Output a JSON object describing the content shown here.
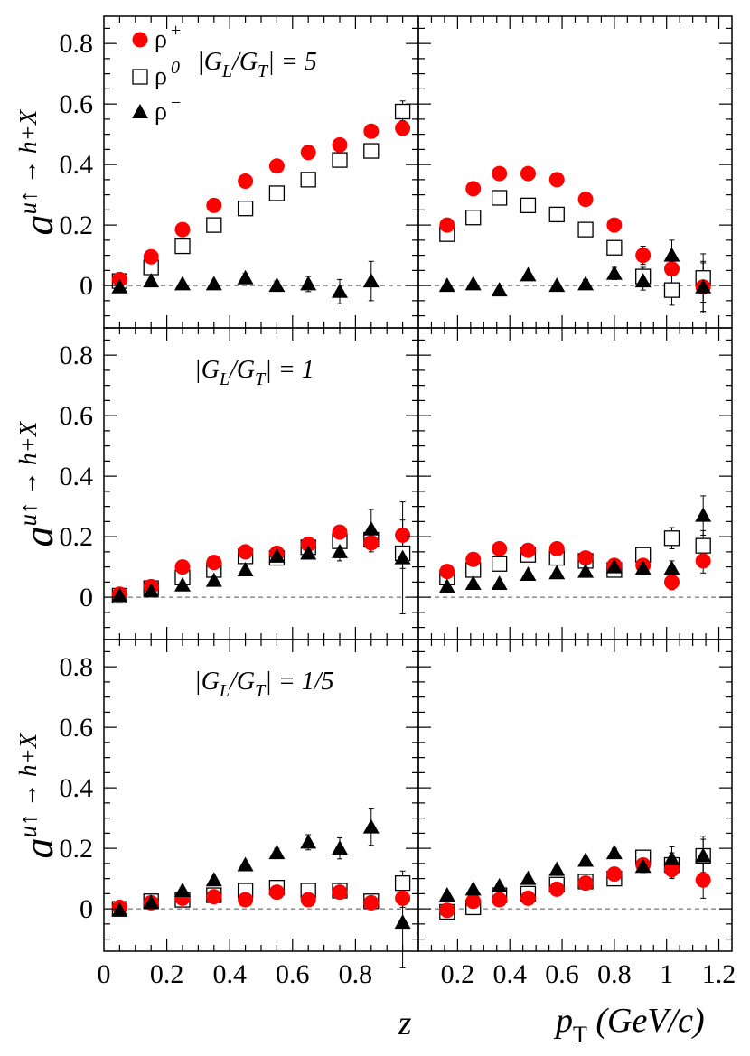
{
  "chart_data": {
    "type": "scatter",
    "ylabel": "a^{u↑ → h+X}",
    "ylabel_main": "a",
    "ylabel_sup": "u↑ → h+X",
    "x_axes": [
      {
        "column": "left",
        "label": "z",
        "range": [
          0,
          1.0
        ],
        "ticks": [
          0,
          0.2,
          0.4,
          0.6,
          0.8
        ],
        "tick_labels": [
          "0",
          "0.2",
          "0.4",
          "0.6",
          "0.8"
        ]
      },
      {
        "column": "right",
        "label_main": "p",
        "label_sub": "T",
        "label_unit": "(GeV/c)",
        "range": [
          0.05,
          1.25
        ],
        "ticks": [
          0.2,
          0.4,
          0.6,
          0.8,
          1.0,
          1.2
        ],
        "tick_labels": [
          "0.2",
          "0.4",
          "0.6",
          "0.8",
          "1",
          "1.2"
        ]
      }
    ],
    "y_range": [
      -0.14,
      0.89
    ],
    "y_ticks": [
      0,
      0.2,
      0.4,
      0.6,
      0.8
    ],
    "y_tick_labels": [
      "0",
      "0.2",
      "0.4",
      "0.6",
      "0.8"
    ],
    "zero_line": "dashed",
    "legend": [
      {
        "name": "ρ+",
        "base": "ρ",
        "sup": "+",
        "marker": "circle",
        "color": "#ff0000"
      },
      {
        "name": "ρ0",
        "base": "ρ",
        "sup": "0",
        "marker": "open-square",
        "color": "#000000"
      },
      {
        "name": "ρ-",
        "base": "ρ",
        "sup": "−",
        "marker": "triangle",
        "color": "#000000"
      }
    ],
    "rows": [
      {
        "annotation": "|G_L/G_T| = 5",
        "ann_parts": [
          "|G",
          "L",
          "/G",
          "T",
          "| = 5"
        ],
        "panels": [
          {
            "x": [
              0.05,
              0.15,
              0.25,
              0.35,
              0.45,
              0.55,
              0.65,
              0.75,
              0.85,
              0.95
            ],
            "series": [
              {
                "name": "ρ+",
                "values": [
                  0.02,
                  0.095,
                  0.185,
                  0.265,
                  0.345,
                  0.395,
                  0.44,
                  0.465,
                  0.51,
                  0.52
                ],
                "errors": [
                  0.01,
                  0.01,
                  0.01,
                  0.01,
                  0.01,
                  0.01,
                  0.01,
                  0.01,
                  0.012,
                  0.025
                ]
              },
              {
                "name": "ρ0",
                "values": [
                  0.015,
                  0.06,
                  0.13,
                  0.2,
                  0.255,
                  0.305,
                  0.35,
                  0.415,
                  0.445,
                  0.575
                ],
                "errors": [
                  0.01,
                  0.01,
                  0.01,
                  0.01,
                  0.01,
                  0.01,
                  0.01,
                  0.01,
                  0.015,
                  0.035
                ]
              },
              {
                "name": "ρ-",
                "values": [
                  -0.005,
                  0.015,
                  0.005,
                  0.005,
                  0.025,
                  0.0,
                  0.005,
                  -0.02,
                  0.015,
                  null
                ],
                "errors": [
                  0.01,
                  0.01,
                  0.01,
                  0.01,
                  0.015,
                  0.015,
                  0.025,
                  0.04,
                  0.065,
                  0.0
                ]
              }
            ]
          },
          {
            "x": [
              0.16,
              0.26,
              0.36,
              0.47,
              0.58,
              0.69,
              0.8,
              0.91,
              1.02,
              1.14
            ],
            "series": [
              {
                "name": "ρ+",
                "values": [
                  0.2,
                  0.32,
                  0.37,
                  0.37,
                  0.35,
                  0.285,
                  0.2,
                  0.1,
                  0.055,
                  -0.005
                ],
                "errors": [
                  0.01,
                  0.01,
                  0.01,
                  0.01,
                  0.01,
                  0.01,
                  0.012,
                  0.03,
                  0.05,
                  0.08
                ]
              },
              {
                "name": "ρ0",
                "values": [
                  0.17,
                  0.225,
                  0.29,
                  0.265,
                  0.235,
                  0.185,
                  0.125,
                  0.03,
                  -0.015,
                  0.025
                ],
                "errors": [
                  0.01,
                  0.01,
                  0.01,
                  0.01,
                  0.01,
                  0.01,
                  0.015,
                  0.03,
                  0.05,
                  0.08
                ]
              },
              {
                "name": "ρ-",
                "values": [
                  0.0,
                  0.005,
                  -0.015,
                  0.035,
                  0.0,
                  0.005,
                  0.04,
                  0.015,
                  0.1,
                  -0.005
                ],
                "errors": [
                  0.01,
                  0.01,
                  0.01,
                  0.012,
                  0.012,
                  0.015,
                  0.02,
                  0.03,
                  0.05,
                  0.085
                ]
              }
            ]
          }
        ]
      },
      {
        "annotation": "|G_L/G_T| = 1",
        "ann_parts": [
          "|G",
          "L",
          "/G",
          "T",
          "| = 1"
        ],
        "panels": [
          {
            "x": [
              0.05,
              0.15,
              0.25,
              0.35,
              0.45,
              0.55,
              0.65,
              0.75,
              0.85,
              0.95
            ],
            "series": [
              {
                "name": "ρ+",
                "values": [
                  0.01,
                  0.035,
                  0.1,
                  0.115,
                  0.15,
                  0.145,
                  0.175,
                  0.215,
                  0.18,
                  0.205
                ],
                "errors": [
                  0.01,
                  0.01,
                  0.01,
                  0.01,
                  0.01,
                  0.01,
                  0.012,
                  0.015,
                  0.03,
                  0.05
                ]
              },
              {
                "name": "ρ0",
                "values": [
                  0.005,
                  0.03,
                  0.065,
                  0.09,
                  0.135,
                  0.13,
                  0.165,
                  0.185,
                  0.19,
                  0.145
                ],
                "errors": [
                  0.01,
                  0.01,
                  0.01,
                  0.01,
                  0.01,
                  0.01,
                  0.012,
                  0.015,
                  0.03,
                  0.05
                ]
              },
              {
                "name": "ρ-",
                "values": [
                  0.005,
                  0.02,
                  0.04,
                  0.055,
                  0.09,
                  0.135,
                  0.145,
                  0.15,
                  0.225,
                  0.13
                ],
                "errors": [
                  0.01,
                  0.01,
                  0.01,
                  0.01,
                  0.01,
                  0.012,
                  0.015,
                  0.03,
                  0.065,
                  0.185
                ]
              }
            ]
          },
          {
            "x": [
              0.16,
              0.26,
              0.36,
              0.47,
              0.58,
              0.69,
              0.8,
              0.91,
              1.02,
              1.14
            ],
            "series": [
              {
                "name": "ρ+",
                "values": [
                  0.085,
                  0.125,
                  0.16,
                  0.155,
                  0.16,
                  0.13,
                  0.105,
                  0.105,
                  0.05,
                  0.12
                ],
                "errors": [
                  0.01,
                  0.01,
                  0.01,
                  0.01,
                  0.01,
                  0.01,
                  0.012,
                  0.015,
                  0.025,
                  0.04
                ]
              },
              {
                "name": "ρ0",
                "values": [
                  0.065,
                  0.09,
                  0.11,
                  0.14,
                  0.13,
                  0.12,
                  0.09,
                  0.14,
                  0.195,
                  0.17
                ],
                "errors": [
                  0.01,
                  0.01,
                  0.01,
                  0.01,
                  0.01,
                  0.01,
                  0.012,
                  0.02,
                  0.035,
                  0.05
                ]
              },
              {
                "name": "ρ-",
                "values": [
                  0.035,
                  0.045,
                  0.045,
                  0.075,
                  0.08,
                  0.085,
                  0.1,
                  0.095,
                  0.095,
                  0.27
                ],
                "errors": [
                  0.01,
                  0.01,
                  0.01,
                  0.01,
                  0.01,
                  0.01,
                  0.012,
                  0.02,
                  0.025,
                  0.065
                ]
              }
            ]
          }
        ]
      },
      {
        "annotation": "|G_L/G_T| = 1/5",
        "ann_parts": [
          "|G",
          "L",
          "/G",
          "T",
          "| = 1/5"
        ],
        "panels": [
          {
            "x": [
              0.05,
              0.15,
              0.25,
              0.35,
              0.45,
              0.55,
              0.65,
              0.75,
              0.85,
              0.95
            ],
            "series": [
              {
                "name": "ρ+",
                "values": [
                  0.005,
                  0.02,
                  0.035,
                  0.04,
                  0.03,
                  0.055,
                  0.03,
                  0.055,
                  0.02,
                  0.035
                ],
                "errors": [
                  0.01,
                  0.01,
                  0.01,
                  0.01,
                  0.01,
                  0.01,
                  0.01,
                  0.012,
                  0.02,
                  0.03
                ]
              },
              {
                "name": "ρ0",
                "values": [
                  0.0,
                  0.025,
                  0.03,
                  0.045,
                  0.06,
                  0.07,
                  0.06,
                  0.06,
                  0.025,
                  0.085
                ],
                "errors": [
                  0.01,
                  0.01,
                  0.01,
                  0.01,
                  0.01,
                  0.01,
                  0.01,
                  0.015,
                  0.02,
                  0.04
                ]
              },
              {
                "name": "ρ-",
                "values": [
                  -0.005,
                  0.02,
                  0.06,
                  0.095,
                  0.145,
                  0.185,
                  0.22,
                  0.2,
                  0.27,
                  -0.045
                ],
                "errors": [
                  0.01,
                  0.01,
                  0.01,
                  0.01,
                  0.012,
                  0.015,
                  0.025,
                  0.035,
                  0.06,
                  0.15
                ]
              }
            ]
          },
          {
            "x": [
              0.16,
              0.26,
              0.36,
              0.47,
              0.58,
              0.69,
              0.8,
              0.91,
              1.02,
              1.14
            ],
            "series": [
              {
                "name": "ρ+",
                "values": [
                  -0.005,
                  0.025,
                  0.03,
                  0.035,
                  0.065,
                  0.085,
                  0.115,
                  0.145,
                  0.13,
                  0.095
                ],
                "errors": [
                  0.01,
                  0.01,
                  0.01,
                  0.01,
                  0.01,
                  0.01,
                  0.012,
                  0.015,
                  0.03,
                  0.06
                ]
              },
              {
                "name": "ρ0",
                "values": [
                  -0.01,
                  0.005,
                  0.045,
                  0.05,
                  0.08,
                  0.09,
                  0.1,
                  0.17,
                  0.145,
                  0.175
                ],
                "errors": [
                  0.01,
                  0.01,
                  0.01,
                  0.01,
                  0.01,
                  0.01,
                  0.012,
                  0.02,
                  0.04,
                  0.055
                ]
              },
              {
                "name": "ρ-",
                "values": [
                  0.045,
                  0.065,
                  0.075,
                  0.1,
                  0.13,
                  0.16,
                  0.185,
                  0.14,
                  0.165,
                  0.175
                ],
                "errors": [
                  0.01,
                  0.01,
                  0.01,
                  0.01,
                  0.01,
                  0.01,
                  0.015,
                  0.02,
                  0.04,
                  0.065
                ]
              }
            ]
          }
        ]
      }
    ]
  }
}
